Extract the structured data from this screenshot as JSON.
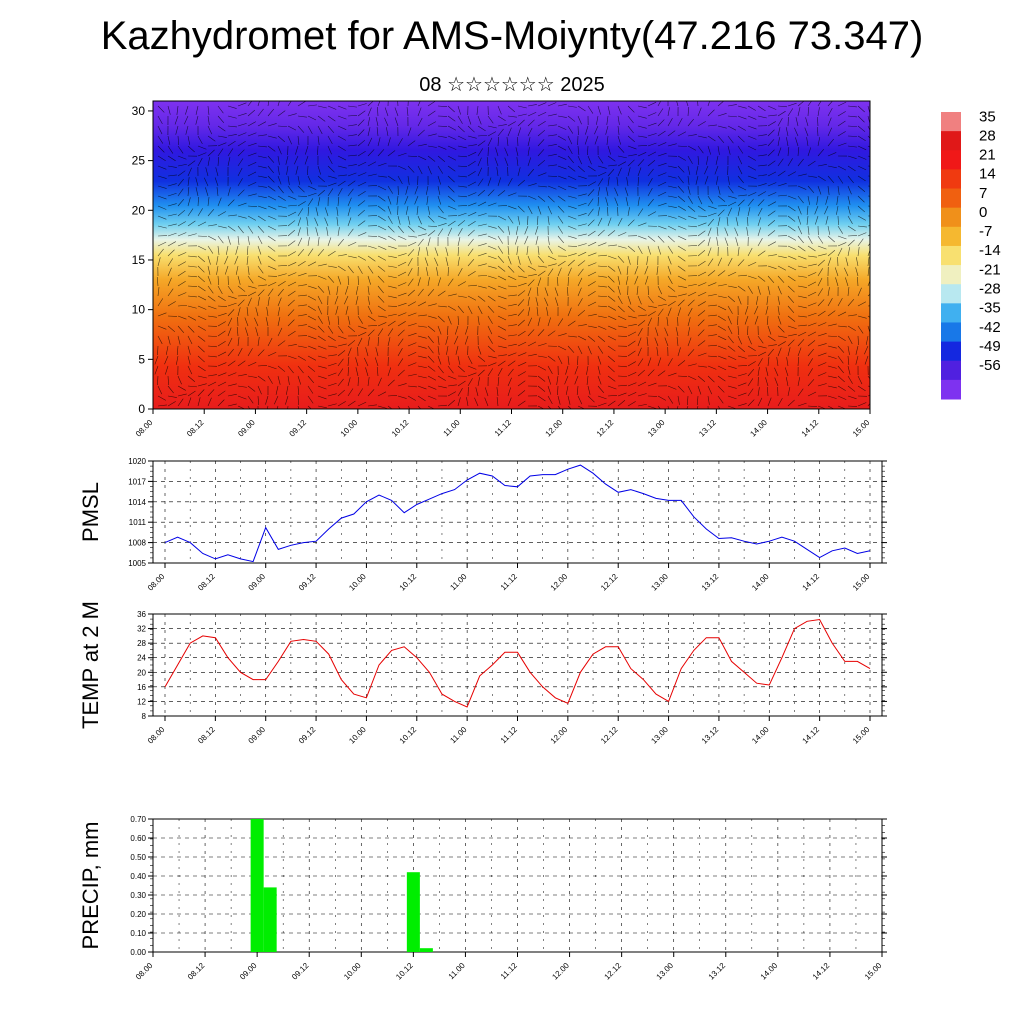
{
  "title": "Kazhydromet for AMS-Moiynty(47.216 73.347)",
  "subtitle": "08 ☆☆☆☆☆☆ 2025",
  "colors": {
    "pmsl_line": "#0000e6",
    "temp_line": "#e60000",
    "precip_bar": "#00ee00"
  },
  "chart_data": [
    {
      "type": "heatmap",
      "name": "cross-section",
      "y_ticks": [
        "0",
        "5",
        "10",
        "15",
        "20",
        "25",
        "30"
      ],
      "ylim": [
        0,
        31
      ],
      "x_ticks": [
        "08.00",
        "08.12",
        "09.00",
        "09.12",
        "10.00",
        "10.12",
        "11.00",
        "11.12",
        "12.00",
        "12.12",
        "13.00",
        "13.12",
        "14.00",
        "14.12",
        "15.00"
      ],
      "colorbar_labels": [
        "35",
        "28",
        "21",
        "14",
        "7",
        "0",
        "-7",
        "-14",
        "-21",
        "-28",
        "-35",
        "-42",
        "-49",
        "-56"
      ],
      "colorbar_colors": [
        "#f08080",
        "#e01818",
        "#f01818",
        "#f03a10",
        "#f06010",
        "#f0901a",
        "#f5b830",
        "#f8e070",
        "#f0f0c0",
        "#b8e8f0",
        "#40b0f0",
        "#1878e8",
        "#1428e0",
        "#5020e0",
        "#7e32f0"
      ]
    },
    {
      "type": "line",
      "name": "PMSL",
      "ylabel": "PMSL",
      "ylim": [
        1005,
        1020
      ],
      "y_ticks": [
        "1005",
        "1008",
        "1011",
        "1014",
        "1017",
        "1020"
      ],
      "x_ticks": [
        "08.00",
        "08.12",
        "09.00",
        "09.12",
        "10.00",
        "10.12",
        "11.00",
        "11.12",
        "12.00",
        "12.12",
        "13.00",
        "13.12",
        "14.00",
        "14.12",
        "15.00"
      ],
      "values": [
        1008.0,
        1008.8,
        1008.0,
        1006.4,
        1005.6,
        1006.2,
        1005.6,
        1005.2,
        1010.2,
        1007.0,
        1007.6,
        1008.0,
        1008.2,
        1010.0,
        1011.6,
        1012.2,
        1014.0,
        1015.0,
        1014.2,
        1012.4,
        1013.6,
        1014.4,
        1015.2,
        1015.8,
        1017.2,
        1018.2,
        1017.8,
        1016.4,
        1016.2,
        1017.8,
        1018.0,
        1018.0,
        1018.8,
        1019.4,
        1018.2,
        1016.6,
        1015.4,
        1015.8,
        1015.2,
        1014.5,
        1014.2,
        1014.2,
        1011.8,
        1010.0,
        1008.6,
        1008.7,
        1008.2,
        1007.8,
        1008.2,
        1008.8,
        1008.2,
        1007.0,
        1005.8,
        1006.8,
        1007.2,
        1006.4,
        1006.8
      ]
    },
    {
      "type": "line",
      "name": "TEMP at 2 M",
      "ylabel": "TEMP at 2 M",
      "ylim": [
        8,
        36
      ],
      "y_ticks": [
        "8",
        "12",
        "16",
        "20",
        "24",
        "28",
        "32",
        "36"
      ],
      "x_ticks": [
        "08.00",
        "08.12",
        "09.00",
        "09.12",
        "10.00",
        "10.12",
        "11.00",
        "11.12",
        "12.00",
        "12.12",
        "13.00",
        "13.12",
        "14.00",
        "14.12",
        "15.00"
      ],
      "values": [
        16,
        22,
        28,
        30,
        29.5,
        24,
        20,
        18,
        18,
        23,
        28.5,
        29,
        28.5,
        25,
        18,
        14,
        13,
        22,
        26,
        27,
        24,
        20,
        14,
        12,
        10.5,
        19,
        22,
        25.5,
        25.5,
        20,
        16,
        13,
        11.5,
        20,
        25,
        27,
        27,
        21,
        18,
        14,
        12,
        21,
        26,
        29.5,
        29.5,
        23,
        20,
        17,
        16.5,
        24,
        32,
        34,
        34.5,
        28,
        23,
        23,
        21
      ]
    },
    {
      "type": "bar",
      "name": "PRECIP, mm",
      "ylabel": "PRECIP, mm",
      "ylim": [
        0,
        0.7
      ],
      "y_ticks": [
        "0.00",
        "0.10",
        "0.20",
        "0.30",
        "0.40",
        "0.50",
        "0.60",
        "0.70"
      ],
      "x_ticks": [
        "08.00",
        "08.12",
        "09.00",
        "09.12",
        "10.00",
        "10.12",
        "11.00",
        "11.12",
        "12.00",
        "12.12",
        "13.00",
        "13.12",
        "14.00",
        "14.12",
        "15.00"
      ],
      "values": [
        0,
        0,
        0,
        0,
        0,
        0,
        0,
        0,
        0.7,
        0.34,
        0,
        0,
        0,
        0,
        0,
        0,
        0,
        0,
        0,
        0,
        0.42,
        0.02,
        0,
        0,
        0,
        0,
        0,
        0,
        0,
        0,
        0,
        0,
        0,
        0,
        0,
        0,
        0,
        0,
        0,
        0,
        0,
        0,
        0,
        0,
        0,
        0,
        0,
        0,
        0,
        0,
        0,
        0,
        0,
        0,
        0,
        0,
        0
      ]
    }
  ]
}
